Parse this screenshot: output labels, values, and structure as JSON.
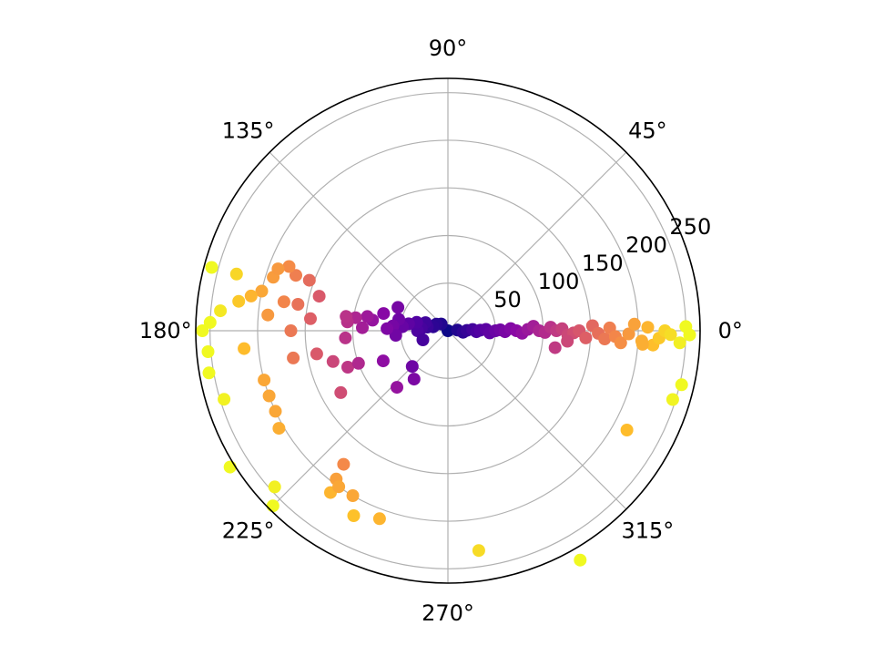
{
  "chart_data": {
    "type": "scatter",
    "projection": "polar",
    "title": "",
    "theta_unit": "degrees",
    "theta_tick_labels": [
      "0°",
      "45°",
      "90°",
      "135°",
      "180°",
      "225°",
      "270°",
      "315°"
    ],
    "theta_ticks": [
      0,
      45,
      90,
      135,
      180,
      225,
      270,
      315
    ],
    "r_ticks": [
      50,
      100,
      150,
      200,
      250
    ],
    "r_tick_labels": [
      "50",
      "100",
      "150",
      "200",
      "250"
    ],
    "rlim": [
      0,
      265
    ],
    "grid": true,
    "colormap": "plasma",
    "color_encodes": "radius",
    "points": [
      [
        0,
        0
      ],
      [
        4,
        10
      ],
      [
        -6,
        16
      ],
      [
        1,
        20
      ],
      [
        3,
        26
      ],
      [
        -2,
        30
      ],
      [
        1,
        34
      ],
      [
        2,
        40
      ],
      [
        -3,
        44
      ],
      [
        0,
        50
      ],
      [
        1,
        55
      ],
      [
        -1,
        60
      ],
      [
        2,
        66
      ],
      [
        0,
        72
      ],
      [
        -2,
        78
      ],
      [
        1,
        84
      ],
      [
        3,
        90
      ],
      [
        0,
        96
      ],
      [
        -1,
        102
      ],
      [
        2,
        108
      ],
      [
        0,
        114
      ],
      [
        1,
        120
      ],
      [
        -2,
        126
      ],
      [
        -1,
        132
      ],
      [
        0,
        138
      ],
      [
        -3,
        145
      ],
      [
        -9,
        114
      ],
      [
        -5,
        126
      ],
      [
        2,
        152
      ],
      [
        -1,
        158
      ],
      [
        -3,
        165
      ],
      [
        1,
        170
      ],
      [
        -2,
        176
      ],
      [
        -4,
        182
      ],
      [
        -1,
        190
      ],
      [
        2,
        196
      ],
      [
        -3,
        204
      ],
      [
        1,
        210
      ],
      [
        -4,
        216
      ],
      [
        -2,
        222
      ],
      [
        0,
        228
      ],
      [
        -1,
        234
      ],
      [
        -4,
        205
      ],
      [
        -3,
        244
      ],
      [
        1,
        250
      ],
      [
        -1,
        254
      ],
      [
        -13,
        252
      ],
      [
        -17,
        247
      ],
      [
        -29,
        215
      ],
      [
        -82,
        233
      ],
      [
        135,
        10
      ],
      [
        150,
        14
      ],
      [
        165,
        16
      ],
      [
        170,
        22
      ],
      [
        160,
        25
      ],
      [
        175,
        28
      ],
      [
        180,
        32
      ],
      [
        200,
        28
      ],
      [
        165,
        34
      ],
      [
        170,
        42
      ],
      [
        175,
        48
      ],
      [
        167,
        53
      ],
      [
        155,
        58
      ],
      [
        175,
        58
      ],
      [
        185,
        55
      ],
      [
        178,
        64
      ],
      [
        165,
        70
      ],
      [
        172,
        80
      ],
      [
        170,
        86
      ],
      [
        178,
        90
      ],
      [
        172,
        98
      ],
      [
        175,
        106
      ],
      [
        172,
        108
      ],
      [
        184,
        108
      ],
      [
        200,
        112
      ],
      [
        225,
        53
      ],
      [
        235,
        62
      ],
      [
        228,
        80
      ],
      [
        205,
        75
      ],
      [
        200,
        100
      ],
      [
        195,
        125
      ],
      [
        210,
        130
      ],
      [
        190,
        140
      ],
      [
        175,
        145
      ],
      [
        165,
        140
      ],
      [
        160,
        155
      ],
      [
        170,
        160
      ],
      [
        180,
        165
      ],
      [
        190,
        165
      ],
      [
        160,
        170
      ],
      [
        170,
        175
      ],
      [
        175,
        190
      ],
      [
        163,
        192
      ],
      [
        158,
        180
      ],
      [
        160,
        190
      ],
      [
        168,
        200
      ],
      [
        170,
        210
      ],
      [
        172,
        222
      ],
      [
        165,
        230
      ],
      [
        175,
        240
      ],
      [
        178,
        250
      ],
      [
        180,
        258
      ],
      [
        185,
        253
      ],
      [
        190,
        255
      ],
      [
        197,
        246
      ],
      [
        185,
        215
      ],
      [
        195,
        200
      ],
      [
        200,
        200
      ],
      [
        205,
        200
      ],
      [
        210,
        205
      ],
      [
        212,
        270
      ],
      [
        222,
        245
      ],
      [
        225,
        260
      ],
      [
        233,
        195
      ],
      [
        234,
        210
      ],
      [
        232,
        178
      ],
      [
        235,
        200
      ],
      [
        240,
        200
      ],
      [
        243,
        218
      ],
      [
        250,
        210
      ],
      [
        300,
        278
      ],
      [
        165,
        257
      ]
    ]
  }
}
